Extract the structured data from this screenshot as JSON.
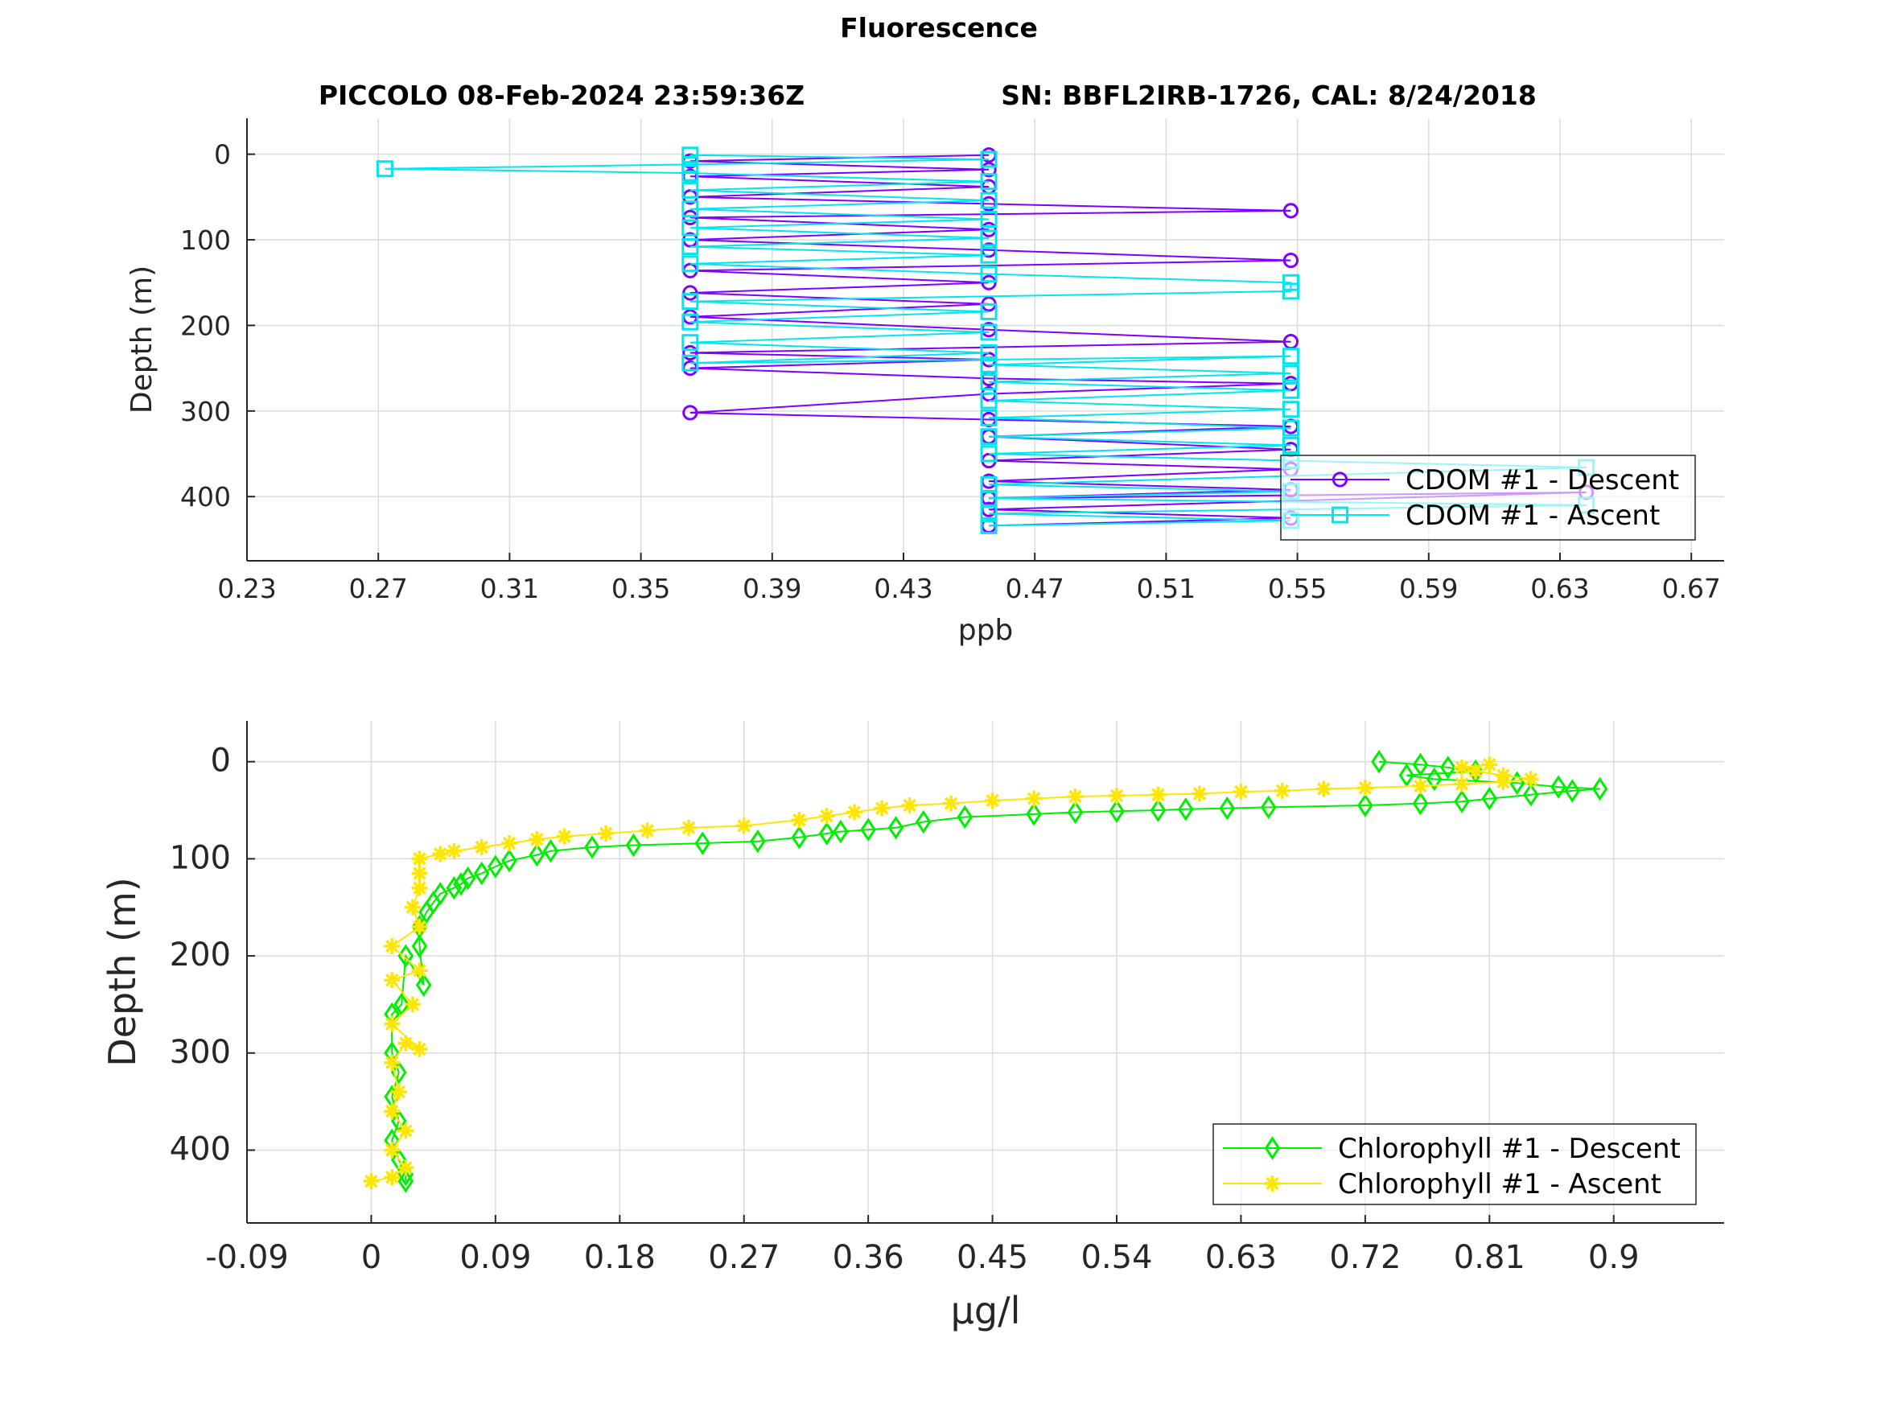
{
  "figure_title": "Fluorescence",
  "subtitle_left": "PICCOLO 08-Feb-2024 23:59:36Z",
  "subtitle_right": "SN: BBFL2IRB-1726, CAL: 8/24/2018",
  "chart_data": [
    {
      "type": "line",
      "xlabel": "ppb",
      "ylabel": "Depth (m)",
      "xlim": [
        0.23,
        0.68
      ],
      "ylim": [
        -42,
        475
      ],
      "y_reversed": true,
      "grid": true,
      "legend_position": "bottom-right",
      "xticks": [
        "0.23",
        "0.27",
        "0.31",
        "0.35",
        "0.39",
        "0.43",
        "0.47",
        "0.51",
        "0.55",
        "0.59",
        "0.63",
        "0.67"
      ],
      "yticks": [
        "0",
        "100",
        "200",
        "300",
        "400"
      ],
      "series": [
        {
          "name": "CDOM #1 - Descent",
          "color": "#7f00ff",
          "marker": "circle",
          "points": [
            [
              0.456,
              1
            ],
            [
              0.365,
              8
            ],
            [
              0.456,
              18
            ],
            [
              0.365,
              26
            ],
            [
              0.456,
              38
            ],
            [
              0.365,
              50
            ],
            [
              0.456,
              58
            ],
            [
              0.548,
              66
            ],
            [
              0.365,
              74
            ],
            [
              0.456,
              88
            ],
            [
              0.365,
              100
            ],
            [
              0.456,
              112
            ],
            [
              0.548,
              124
            ],
            [
              0.365,
              136
            ],
            [
              0.456,
              150
            ],
            [
              0.365,
              162
            ],
            [
              0.456,
              175
            ],
            [
              0.365,
              190
            ],
            [
              0.456,
              205
            ],
            [
              0.548,
              219
            ],
            [
              0.365,
              232
            ],
            [
              0.456,
              240
            ],
            [
              0.365,
              250
            ],
            [
              0.456,
              262
            ],
            [
              0.548,
              268
            ],
            [
              0.456,
              280
            ],
            [
              0.365,
              302
            ],
            [
              0.456,
              310
            ],
            [
              0.548,
              318
            ],
            [
              0.456,
              330
            ],
            [
              0.548,
              345
            ],
            [
              0.456,
              358
            ],
            [
              0.548,
              368
            ],
            [
              0.456,
              382
            ],
            [
              0.548,
              392
            ],
            [
              0.456,
              402
            ],
            [
              0.638,
              395
            ],
            [
              0.456,
              415
            ],
            [
              0.548,
              425
            ],
            [
              0.456,
              434
            ]
          ]
        },
        {
          "name": "CDOM #1 - Ascent",
          "color": "#00e5ee",
          "marker": "square",
          "points": [
            [
              0.456,
              434
            ],
            [
              0.548,
              428
            ],
            [
              0.456,
              420
            ],
            [
              0.638,
              410
            ],
            [
              0.456,
              402
            ],
            [
              0.548,
              394
            ],
            [
              0.456,
              386
            ],
            [
              0.638,
              366
            ],
            [
              0.548,
              358
            ],
            [
              0.456,
              350
            ],
            [
              0.548,
              340
            ],
            [
              0.456,
              330
            ],
            [
              0.548,
              320
            ],
            [
              0.456,
              308
            ],
            [
              0.548,
              298
            ],
            [
              0.456,
              288
            ],
            [
              0.548,
              276
            ],
            [
              0.456,
              266
            ],
            [
              0.548,
              256
            ],
            [
              0.456,
              246
            ],
            [
              0.548,
              236
            ],
            [
              0.365,
              244
            ],
            [
              0.456,
              232
            ],
            [
              0.365,
              220
            ],
            [
              0.456,
              208
            ],
            [
              0.365,
              196
            ],
            [
              0.456,
              184
            ],
            [
              0.365,
              172
            ],
            [
              0.548,
              160
            ],
            [
              0.548,
              150
            ],
            [
              0.456,
              140
            ],
            [
              0.365,
              128
            ],
            [
              0.456,
              118
            ],
            [
              0.365,
              108
            ],
            [
              0.456,
              98
            ],
            [
              0.365,
              86
            ],
            [
              0.456,
              76
            ],
            [
              0.365,
              64
            ],
            [
              0.456,
              54
            ],
            [
              0.365,
              42
            ],
            [
              0.456,
              32
            ],
            [
              0.365,
              22
            ],
            [
              0.272,
              17
            ],
            [
              0.365,
              12
            ],
            [
              0.456,
              6
            ],
            [
              0.365,
              1
            ]
          ]
        }
      ]
    },
    {
      "type": "line",
      "xlabel": "μg/l",
      "ylabel": "Depth (m)",
      "xlim": [
        -0.09,
        0.98
      ],
      "ylim": [
        -42,
        475
      ],
      "y_reversed": true,
      "grid": true,
      "legend_position": "bottom-right",
      "xticks": [
        "-0.09",
        "0",
        "0.09",
        "0.18",
        "0.27",
        "0.36",
        "0.45",
        "0.54",
        "0.63",
        "0.72",
        "0.81",
        "0.9"
      ],
      "yticks": [
        "0",
        "100",
        "200",
        "300",
        "400"
      ],
      "series": [
        {
          "name": "Chlorophyll #1 - Descent",
          "color": "#00ee00",
          "marker": "diamond",
          "points": [
            [
              0.73,
              0
            ],
            [
              0.76,
              3
            ],
            [
              0.78,
              6
            ],
            [
              0.8,
              10
            ],
            [
              0.75,
              14
            ],
            [
              0.77,
              18
            ],
            [
              0.83,
              22
            ],
            [
              0.86,
              26
            ],
            [
              0.89,
              28
            ],
            [
              0.87,
              30
            ],
            [
              0.84,
              34
            ],
            [
              0.81,
              38
            ],
            [
              0.79,
              41
            ],
            [
              0.76,
              43
            ],
            [
              0.72,
              45
            ],
            [
              0.65,
              47
            ],
            [
              0.62,
              48
            ],
            [
              0.59,
              49
            ],
            [
              0.57,
              50
            ],
            [
              0.54,
              51
            ],
            [
              0.51,
              52
            ],
            [
              0.48,
              54
            ],
            [
              0.43,
              57
            ],
            [
              0.4,
              62
            ],
            [
              0.38,
              68
            ],
            [
              0.36,
              70
            ],
            [
              0.34,
              72
            ],
            [
              0.33,
              74
            ],
            [
              0.31,
              78
            ],
            [
              0.28,
              82
            ],
            [
              0.24,
              84
            ],
            [
              0.19,
              86
            ],
            [
              0.16,
              88
            ],
            [
              0.13,
              92
            ],
            [
              0.12,
              96
            ],
            [
              0.1,
              102
            ],
            [
              0.09,
              108
            ],
            [
              0.08,
              115
            ],
            [
              0.07,
              120
            ],
            [
              0.065,
              126
            ],
            [
              0.06,
              130
            ],
            [
              0.05,
              136
            ],
            [
              0.045,
              145
            ],
            [
              0.04,
              155
            ],
            [
              0.035,
              170
            ],
            [
              0.035,
              190
            ],
            [
              0.038,
              230
            ],
            [
              0.025,
              200
            ],
            [
              0.022,
              250
            ],
            [
              0.015,
              260
            ],
            [
              0.015,
              300
            ],
            [
              0.02,
              320
            ],
            [
              0.015,
              345
            ],
            [
              0.02,
              370
            ],
            [
              0.015,
              390
            ],
            [
              0.02,
              410
            ],
            [
              0.025,
              425
            ],
            [
              0.025,
              432
            ]
          ]
        },
        {
          "name": "Chlorophyll #1 - Ascent",
          "color": "#ffe600",
          "marker": "asterisk",
          "points": [
            [
              0.0,
              432
            ],
            [
              0.015,
              428
            ],
            [
              0.025,
              418
            ],
            [
              0.015,
              400
            ],
            [
              0.025,
              380
            ],
            [
              0.015,
              360
            ],
            [
              0.02,
              340
            ],
            [
              0.015,
              310
            ],
            [
              0.025,
              290
            ],
            [
              0.035,
              296
            ],
            [
              0.015,
              270
            ],
            [
              0.03,
              250
            ],
            [
              0.015,
              225
            ],
            [
              0.035,
              215
            ],
            [
              0.015,
              190
            ],
            [
              0.035,
              170
            ],
            [
              0.03,
              150
            ],
            [
              0.035,
              130
            ],
            [
              0.035,
              115
            ],
            [
              0.035,
              100
            ],
            [
              0.05,
              95
            ],
            [
              0.06,
              92
            ],
            [
              0.08,
              88
            ],
            [
              0.1,
              84
            ],
            [
              0.12,
              80
            ],
            [
              0.14,
              77
            ],
            [
              0.17,
              74
            ],
            [
              0.2,
              71
            ],
            [
              0.23,
              68
            ],
            [
              0.27,
              66
            ],
            [
              0.31,
              60
            ],
            [
              0.33,
              56
            ],
            [
              0.35,
              52
            ],
            [
              0.37,
              48
            ],
            [
              0.39,
              45
            ],
            [
              0.42,
              43
            ],
            [
              0.45,
              40
            ],
            [
              0.48,
              38
            ],
            [
              0.51,
              36
            ],
            [
              0.54,
              35
            ],
            [
              0.57,
              34
            ],
            [
              0.6,
              33
            ],
            [
              0.63,
              31
            ],
            [
              0.66,
              30
            ],
            [
              0.69,
              28
            ],
            [
              0.72,
              27
            ],
            [
              0.76,
              25
            ],
            [
              0.79,
              23
            ],
            [
              0.82,
              21
            ],
            [
              0.84,
              18
            ],
            [
              0.82,
              14
            ],
            [
              0.8,
              10
            ],
            [
              0.79,
              6
            ],
            [
              0.81,
              3
            ]
          ]
        }
      ]
    }
  ]
}
